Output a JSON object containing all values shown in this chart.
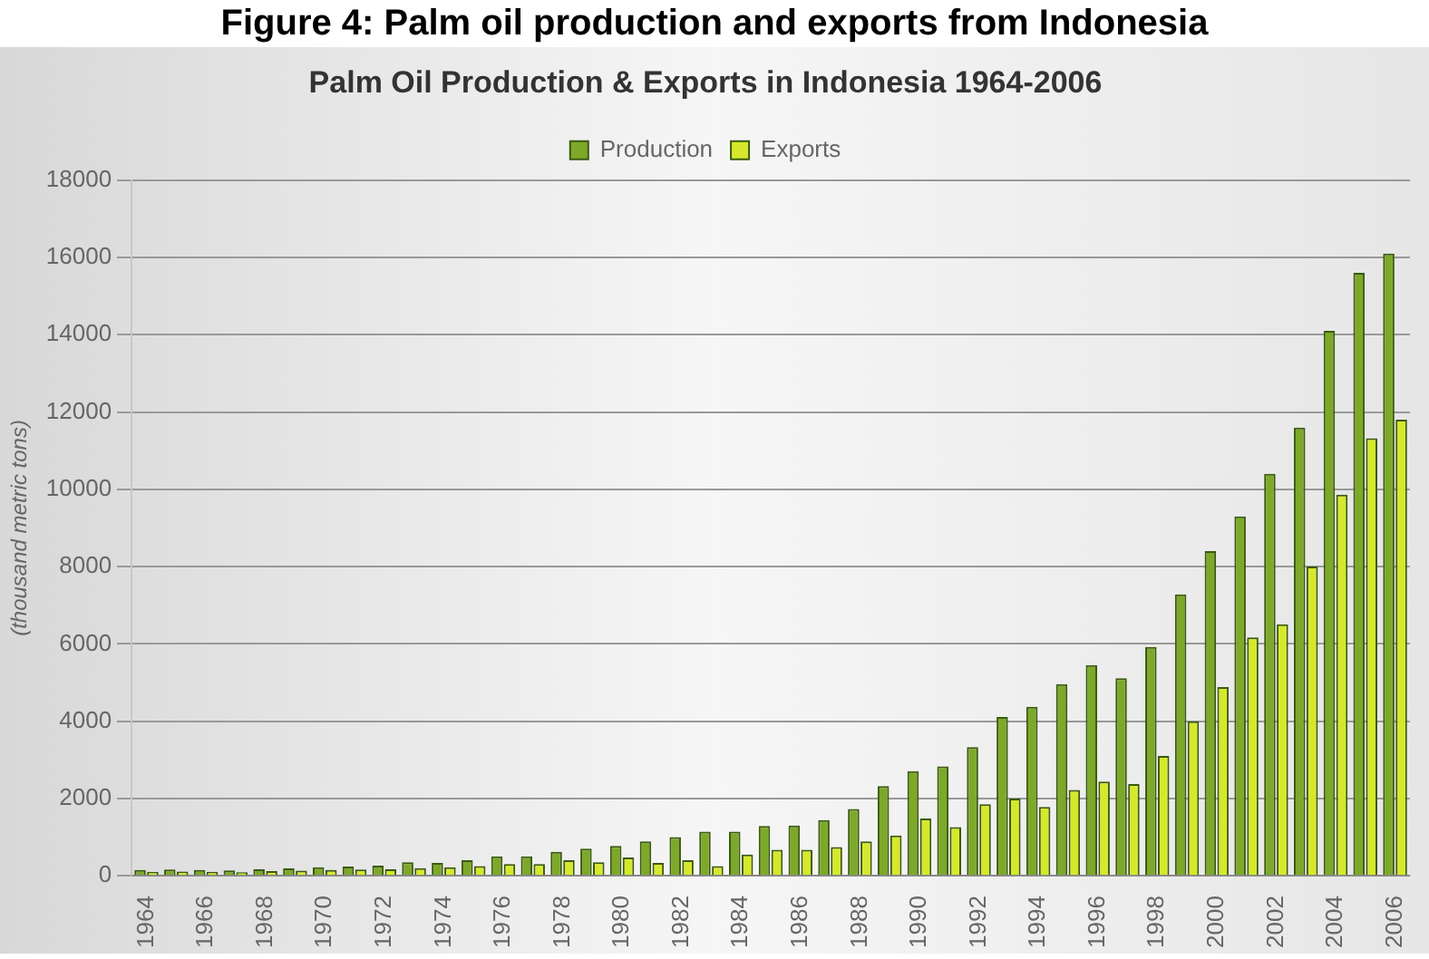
{
  "chart_data": {
    "type": "bar",
    "title": "Palm Oil Production & Exports in Indonesia 1964-2006",
    "ylabel": "(thousand metric tons)",
    "annotations": [
      "Figure 4: Palm oil production and exports from Indonesia"
    ],
    "categories": [
      "1964",
      null,
      "1966",
      null,
      "1968",
      null,
      "1970",
      null,
      "1972",
      null,
      "1974",
      null,
      "1976",
      null,
      "1978",
      null,
      "1980",
      null,
      "1982",
      null,
      "1984",
      null,
      "1986",
      null,
      "1988",
      null,
      "1990",
      null,
      "1992",
      null,
      "1994",
      null,
      "1996",
      null,
      "1998",
      null,
      "2000",
      null,
      "2002",
      null,
      "2004",
      null,
      "2006"
    ],
    "series": [
      {
        "name": "Production",
        "color": "#7da82a",
        "values": [
          150,
          160,
          150,
          140,
          170,
          190,
          220,
          240,
          260,
          350,
          330,
          400,
          500,
          500,
          620,
          700,
          770,
          890,
          1000,
          1140,
          1140,
          1290,
          1300,
          1440,
          1730,
          2320,
          2710,
          2830,
          3330,
          4110,
          4370,
          4960,
          5450,
          5110,
          5920,
          7280,
          8400,
          9300,
          10400,
          11600,
          14100,
          15600,
          16100
        ]
      },
      {
        "name": "Exports",
        "color": "#d6e82c",
        "values": [
          100,
          110,
          100,
          90,
          120,
          130,
          150,
          160,
          170,
          200,
          220,
          250,
          300,
          300,
          400,
          350,
          470,
          330,
          400,
          250,
          550,
          670,
          670,
          740,
          890,
          1040,
          1480,
          1260,
          1850,
          2000,
          1780,
          2220,
          2440,
          2370,
          3100,
          4000,
          4880,
          6170,
          6510,
          8000,
          9860,
          11320,
          11800
        ]
      }
    ],
    "ylim": [
      0,
      18000
    ],
    "yticks": [
      0,
      2000,
      4000,
      6000,
      8000,
      10000,
      12000,
      14000,
      16000,
      18000
    ],
    "grid": "y",
    "legend": "top"
  }
}
